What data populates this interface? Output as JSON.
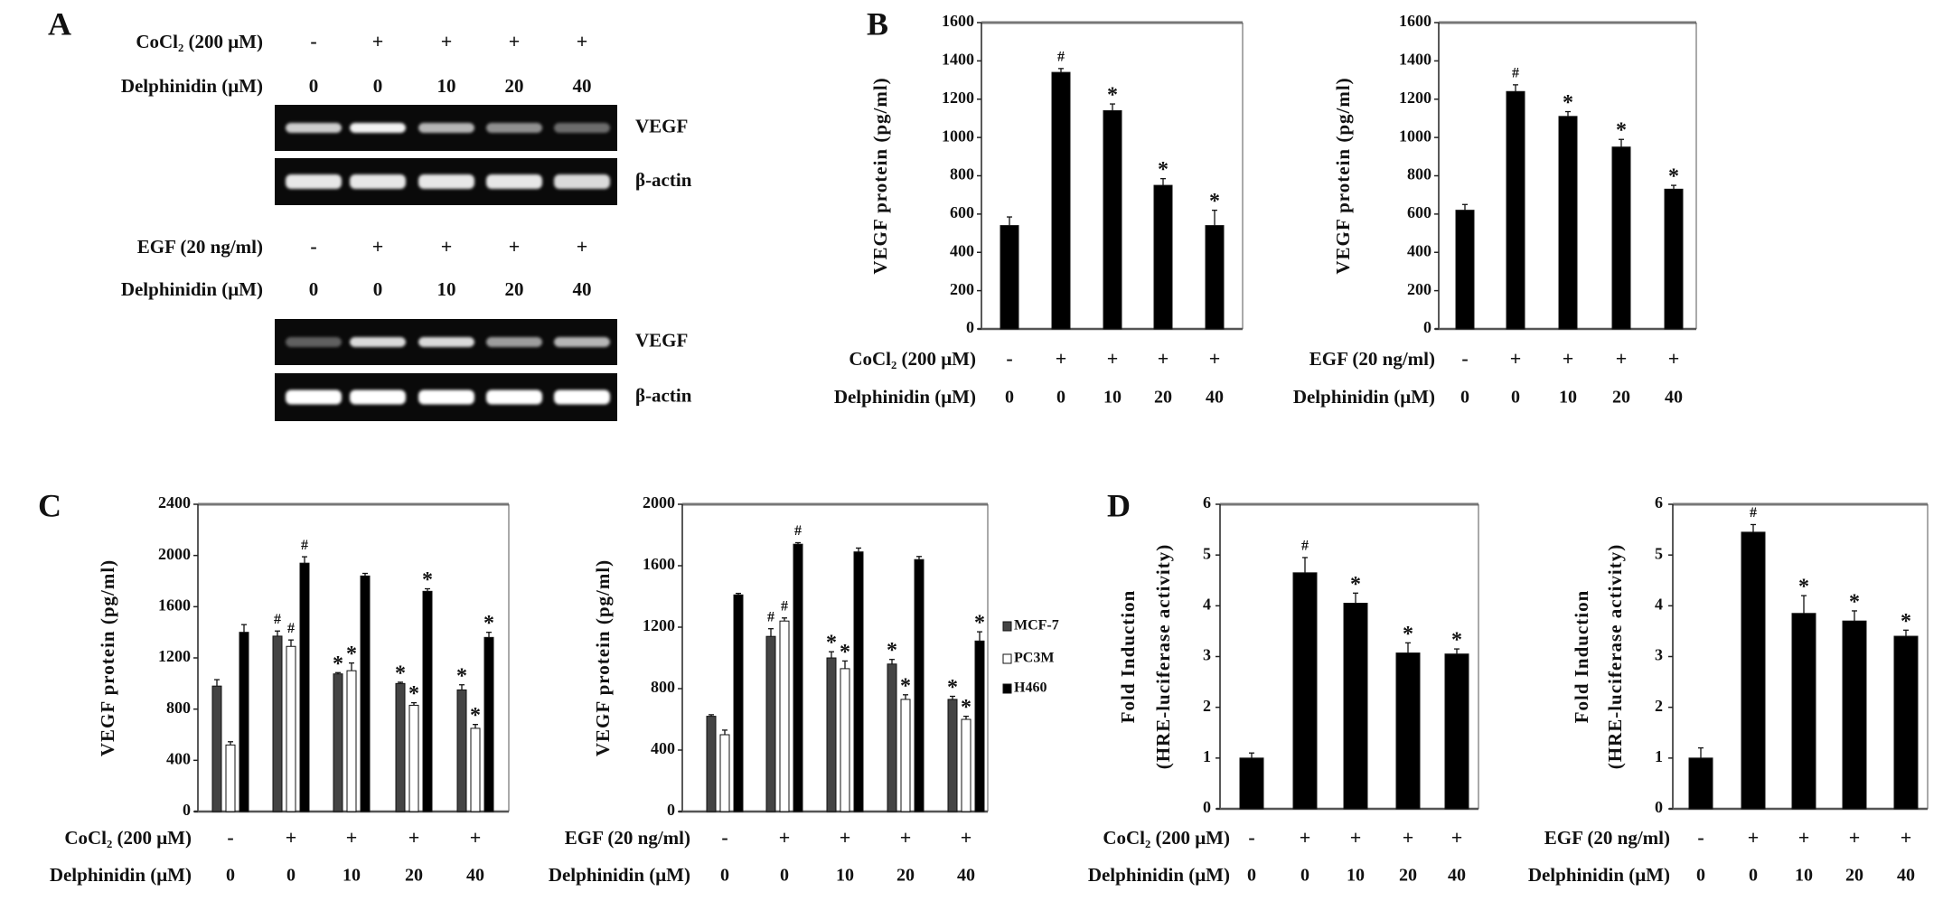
{
  "panel_labels": {
    "A": "A",
    "B": "B",
    "C": "C",
    "D": "D"
  },
  "panel_a": {
    "blocks": [
      {
        "stimulus_label": "CoCl₂ (200 μM)",
        "stimulus_signs": [
          "-",
          "+",
          "+",
          "+",
          "+"
        ],
        "delph_label": "Delphinidin (μM)",
        "delph_doses": [
          "0",
          "0",
          "10",
          "20",
          "40"
        ],
        "gels": [
          {
            "label": "VEGF"
          },
          {
            "label": "β-actin"
          }
        ]
      },
      {
        "stimulus_label": "EGF (20 ng/ml)",
        "stimulus_signs": [
          "-",
          "+",
          "+",
          "+",
          "+"
        ],
        "delph_label": "Delphinidin (μM)",
        "delph_doses": [
          "0",
          "0",
          "10",
          "20",
          "40"
        ],
        "gels": [
          {
            "label": "VEGF"
          },
          {
            "label": "β-actin"
          }
        ]
      }
    ]
  },
  "chart_data": [
    {
      "panel": "B",
      "type": "bar",
      "ylabel_lines": [
        "VEGF protein (pg/ml)"
      ],
      "ylim": [
        0,
        1600
      ],
      "yticks": [
        "0",
        "200",
        "400",
        "600",
        "800",
        "1000",
        "1200",
        "1400",
        "1600"
      ],
      "categories": [
        "0",
        "0",
        "10",
        "20",
        "40"
      ],
      "series": [
        {
          "name": "VEGF",
          "color": "#000000",
          "values": [
            540,
            1340,
            1140,
            750,
            540
          ],
          "errors": [
            45,
            20,
            35,
            35,
            80
          ],
          "marks": [
            "",
            "#",
            "*",
            "*",
            "*"
          ]
        }
      ],
      "conditions": [
        {
          "label": "CoCl₂ (200 μM)",
          "values": [
            "-",
            "+",
            "+",
            "+",
            "+"
          ]
        },
        {
          "label": "Delphinidin (μM)",
          "values": [
            "0",
            "0",
            "10",
            "20",
            "40"
          ]
        }
      ]
    },
    {
      "panel": "B",
      "type": "bar",
      "ylabel_lines": [
        "VEGF protein (pg/ml)"
      ],
      "ylim": [
        0,
        1600
      ],
      "yticks": [
        "0",
        "200",
        "400",
        "600",
        "800",
        "1000",
        "1200",
        "1400",
        "1600"
      ],
      "categories": [
        "0",
        "0",
        "10",
        "20",
        "40"
      ],
      "series": [
        {
          "name": "VEGF",
          "color": "#000000",
          "values": [
            620,
            1240,
            1110,
            950,
            730
          ],
          "errors": [
            30,
            35,
            25,
            40,
            20
          ],
          "marks": [
            "",
            "#",
            "*",
            "*",
            "*"
          ]
        }
      ],
      "conditions": [
        {
          "label": "EGF (20 ng/ml)",
          "values": [
            "-",
            "+",
            "+",
            "+",
            "+"
          ]
        },
        {
          "label": "Delphinidin (μM)",
          "values": [
            "0",
            "0",
            "10",
            "20",
            "40"
          ]
        }
      ]
    },
    {
      "panel": "C",
      "type": "bar",
      "ylabel_lines": [
        "VEGF protein (pg/ml)"
      ],
      "ylim": [
        0,
        2400
      ],
      "yticks": [
        "0",
        "400",
        "800",
        "1200",
        "1600",
        "2000",
        "2400"
      ],
      "categories": [
        "0",
        "0",
        "10",
        "20",
        "40"
      ],
      "series": [
        {
          "name": "MCF-7",
          "color": "#444444",
          "values": [
            980,
            1370,
            1075,
            1000,
            950
          ],
          "errors": [
            50,
            40,
            10,
            10,
            40
          ],
          "marks": [
            "",
            "#",
            "*",
            "*",
            "*"
          ]
        },
        {
          "name": "PC3M",
          "color": "#ffffff",
          "values": [
            520,
            1290,
            1100,
            830,
            650
          ],
          "errors": [
            25,
            50,
            60,
            20,
            30
          ],
          "marks": [
            "",
            "#",
            "*",
            "*",
            "*"
          ]
        },
        {
          "name": "H460",
          "color": "#000000",
          "values": [
            1400,
            1940,
            1840,
            1720,
            1360
          ],
          "errors": [
            60,
            50,
            20,
            20,
            40
          ],
          "marks": [
            "",
            "#",
            "",
            "*",
            "*"
          ]
        }
      ],
      "conditions": [
        {
          "label": "CoCl₂ (200 μM)",
          "values": [
            "-",
            "+",
            "+",
            "+",
            "+"
          ]
        },
        {
          "label": "Delphinidin (μM)",
          "values": [
            "0",
            "0",
            "10",
            "20",
            "40"
          ]
        }
      ]
    },
    {
      "panel": "C",
      "type": "bar",
      "ylabel_lines": [
        "VEGF protein (pg/ml)"
      ],
      "ylim": [
        0,
        2000
      ],
      "yticks": [
        "0",
        "400",
        "800",
        "1200",
        "1600",
        "2000"
      ],
      "categories": [
        "0",
        "0",
        "10",
        "20",
        "40"
      ],
      "legend": "right",
      "series": [
        {
          "name": "MCF-7",
          "color": "#444444",
          "values": [
            620,
            1140,
            1000,
            960,
            730
          ],
          "errors": [
            10,
            50,
            40,
            30,
            20
          ],
          "marks": [
            "",
            "#",
            "*",
            "*",
            "*"
          ]
        },
        {
          "name": "PC3M",
          "color": "#ffffff",
          "values": [
            500,
            1240,
            930,
            730,
            600
          ],
          "errors": [
            30,
            20,
            50,
            30,
            20
          ],
          "marks": [
            "",
            "#",
            "*",
            "*",
            "*"
          ]
        },
        {
          "name": "H460",
          "color": "#000000",
          "values": [
            1410,
            1740,
            1690,
            1640,
            1110
          ],
          "errors": [
            10,
            10,
            25,
            20,
            60
          ],
          "marks": [
            "",
            "#",
            "",
            "",
            "*"
          ]
        }
      ],
      "conditions": [
        {
          "label": "EGF (20 ng/ml)",
          "values": [
            "-",
            "+",
            "+",
            "+",
            "+"
          ]
        },
        {
          "label": "Delphinidin (μM)",
          "values": [
            "0",
            "0",
            "10",
            "20",
            "40"
          ]
        }
      ]
    },
    {
      "panel": "D",
      "type": "bar",
      "ylabel_lines": [
        "Fold Induction",
        "(HRE-luciferase activity)"
      ],
      "ylim": [
        0,
        6
      ],
      "yticks": [
        "0",
        "1",
        "2",
        "3",
        "4",
        "5",
        "6"
      ],
      "categories": [
        "0",
        "0",
        "10",
        "20",
        "40"
      ],
      "series": [
        {
          "name": "HRE",
          "color": "#000000",
          "values": [
            1.0,
            4.65,
            4.05,
            3.07,
            3.05
          ],
          "errors": [
            0.1,
            0.3,
            0.2,
            0.2,
            0.1
          ],
          "marks": [
            "",
            "#",
            "*",
            "*",
            "*"
          ]
        }
      ],
      "conditions": [
        {
          "label": "CoCl₂ (200 μM)",
          "values": [
            "-",
            "+",
            "+",
            "+",
            "+"
          ]
        },
        {
          "label": "Delphinidin (μM)",
          "values": [
            "0",
            "0",
            "10",
            "20",
            "40"
          ]
        }
      ]
    },
    {
      "panel": "D",
      "type": "bar",
      "ylabel_lines": [
        "Fold Induction",
        "(HRE-luciferase activity)"
      ],
      "ylim": [
        0,
        6
      ],
      "yticks": [
        "0",
        "1",
        "2",
        "3",
        "4",
        "5",
        "6"
      ],
      "categories": [
        "0",
        "0",
        "10",
        "20",
        "40"
      ],
      "series": [
        {
          "name": "HRE",
          "color": "#000000",
          "values": [
            1.0,
            5.45,
            3.85,
            3.7,
            3.4
          ],
          "errors": [
            0.2,
            0.15,
            0.35,
            0.2,
            0.12
          ],
          "marks": [
            "",
            "#",
            "*",
            "*",
            "*"
          ]
        }
      ],
      "conditions": [
        {
          "label": "EGF (20 ng/ml)",
          "values": [
            "-",
            "+",
            "+",
            "+",
            "+"
          ]
        },
        {
          "label": "Delphinidin (μM)",
          "values": [
            "0",
            "0",
            "10",
            "20",
            "40"
          ]
        }
      ]
    }
  ]
}
